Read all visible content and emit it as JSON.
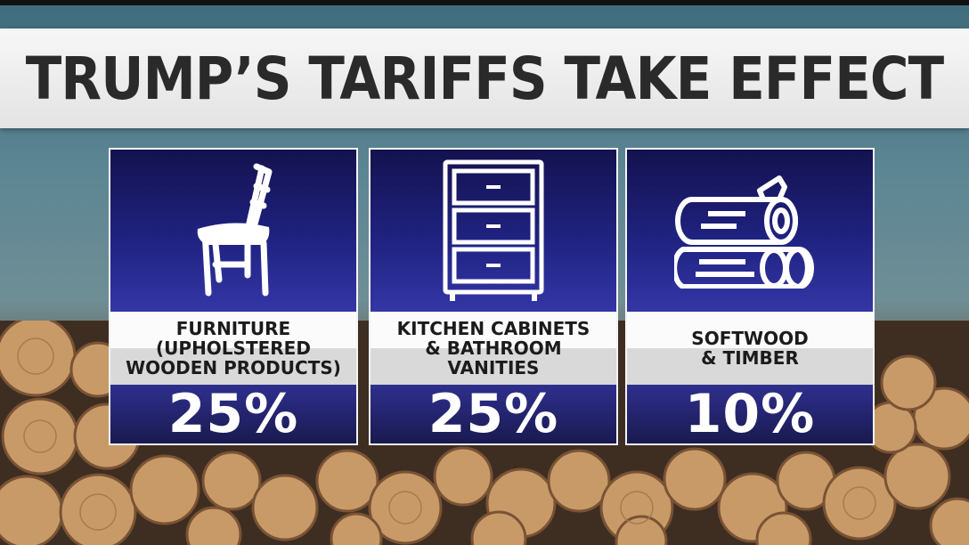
{
  "headline": "TRUMP’S TARIFFS TAKE EFFECT",
  "colors": {
    "card_blue_top": "#14124f",
    "card_blue_bottom": "#3436a6",
    "percent_band": "#23236b",
    "title_text": "#2a2a2a"
  },
  "cards": [
    {
      "icon": "chair-icon",
      "label": "FURNITURE\n(UPHOLSTERED\nWOODEN PRODUCTS)",
      "rate": "25%"
    },
    {
      "icon": "cabinet-icon",
      "label": "KITCHEN CABINETS\n& BATHROOM\nVANITIES",
      "rate": "25%"
    },
    {
      "icon": "logs-icon",
      "label": "SOFTWOOD\n& TIMBER",
      "rate": "10%"
    }
  ]
}
